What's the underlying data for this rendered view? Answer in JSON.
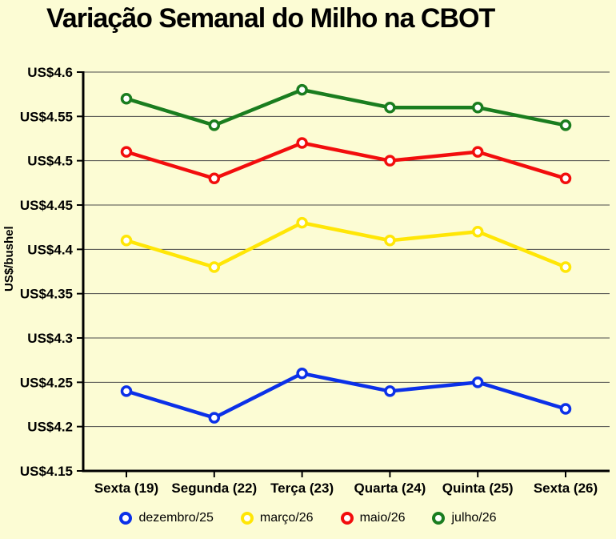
{
  "title": "Variação Semanal do Milho na CBOT",
  "colors": {
    "background": "#FCFCD4",
    "grid": "#4A4A4A",
    "axis": "#000000",
    "text": "#000000",
    "marker_center": "#FFFFFF"
  },
  "chart_data": {
    "type": "line",
    "title": "Variação Semanal do Milho na CBOT",
    "categories": [
      "Sexta (19)",
      "Segunda (22)",
      "Terça (23)",
      "Quarta (24)",
      "Quinta (25)",
      "Sexta (26)"
    ],
    "series": [
      {
        "name": "dezembro/25",
        "color": "#0B30E8",
        "values": [
          4.24,
          4.21,
          4.26,
          4.24,
          4.25,
          4.22
        ]
      },
      {
        "name": "março/26",
        "color": "#FFE606",
        "values": [
          4.41,
          4.38,
          4.43,
          4.41,
          4.42,
          4.38
        ]
      },
      {
        "name": "maio/26",
        "color": "#F20D0D",
        "values": [
          4.51,
          4.48,
          4.52,
          4.5,
          4.51,
          4.48
        ]
      },
      {
        "name": "julho/26",
        "color": "#1A7D1F",
        "values": [
          4.57,
          4.54,
          4.58,
          4.56,
          4.56,
          4.54
        ]
      }
    ],
    "xlabel": "",
    "ylabel": "US$/bushel",
    "ylim": [
      4.15,
      4.6
    ],
    "ytick_step": 0.05,
    "ytick_prefix": "US$",
    "grid": true,
    "legend_position": "bottom",
    "marker_style": "open-circle"
  }
}
